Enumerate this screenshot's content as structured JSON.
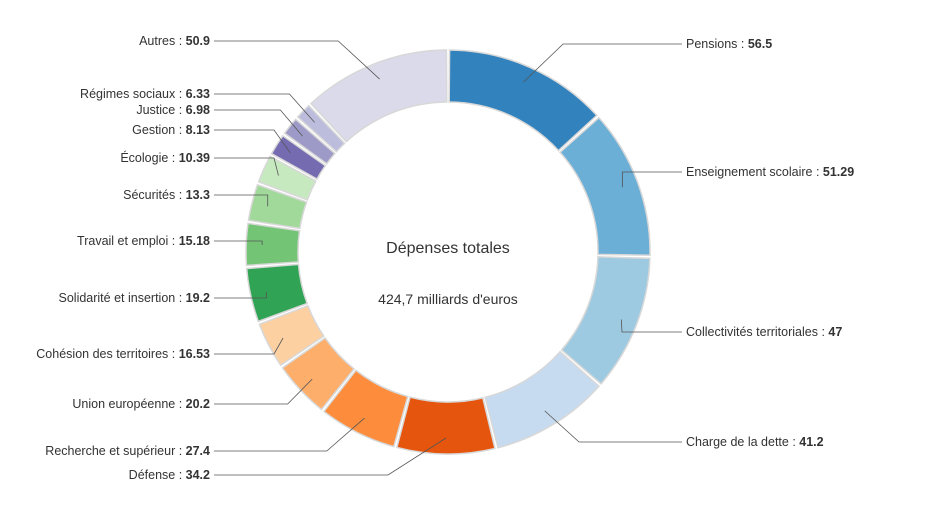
{
  "chart_data": {
    "type": "pie",
    "variant": "donut",
    "center_title": "Dépenses totales",
    "center_subtitle": "424,7 milliards d'euros",
    "series": [
      {
        "label": "Pensions",
        "value": 56.5,
        "value_text": "56.5",
        "color": "#3182bd",
        "side": "right"
      },
      {
        "label": "Enseignement scolaire",
        "value": 51.29,
        "value_text": "51.29",
        "color": "#6baed6",
        "side": "right"
      },
      {
        "label": "Collectivités territoriales",
        "value": 47,
        "value_text": "47",
        "color": "#9ecae1",
        "side": "right"
      },
      {
        "label": "Charge de la dette",
        "value": 41.2,
        "value_text": "41.2",
        "color": "#c6dbef",
        "side": "right"
      },
      {
        "label": "Défense",
        "value": 34.2,
        "value_text": "34.2",
        "color": "#e6550d",
        "side": "left"
      },
      {
        "label": "Recherche et supérieur",
        "value": 27.4,
        "value_text": "27.4",
        "color": "#fd8d3c",
        "side": "left"
      },
      {
        "label": "Union européenne",
        "value": 20.2,
        "value_text": "20.2",
        "color": "#fdae6b",
        "side": "left"
      },
      {
        "label": "Cohésion des territoires",
        "value": 16.53,
        "value_text": "16.53",
        "color": "#fdd0a2",
        "side": "left"
      },
      {
        "label": "Solidarité et insertion",
        "value": 19.2,
        "value_text": "19.2",
        "color": "#31a354",
        "side": "left"
      },
      {
        "label": "Travail et emploi",
        "value": 15.18,
        "value_text": "15.18",
        "color": "#74c476",
        "side": "left"
      },
      {
        "label": "Sécurités",
        "value": 13.3,
        "value_text": "13.3",
        "color": "#a1d99b",
        "side": "left"
      },
      {
        "label": "Écologie",
        "value": 10.39,
        "value_text": "10.39",
        "color": "#c7e9c0",
        "side": "left"
      },
      {
        "label": "Gestion",
        "value": 8.13,
        "value_text": "8.13",
        "color": "#756bb1",
        "side": "left"
      },
      {
        "label": "Justice",
        "value": 6.98,
        "value_text": "6.98",
        "color": "#9e9ac8",
        "side": "left"
      },
      {
        "label": "Régimes sociaux",
        "value": 6.33,
        "value_text": "6.33",
        "color": "#bcbddc",
        "side": "left"
      },
      {
        "label": "Autres",
        "value": 50.9,
        "value_text": "50.9",
        "color": "#dadaeb",
        "side": "left"
      }
    ]
  }
}
